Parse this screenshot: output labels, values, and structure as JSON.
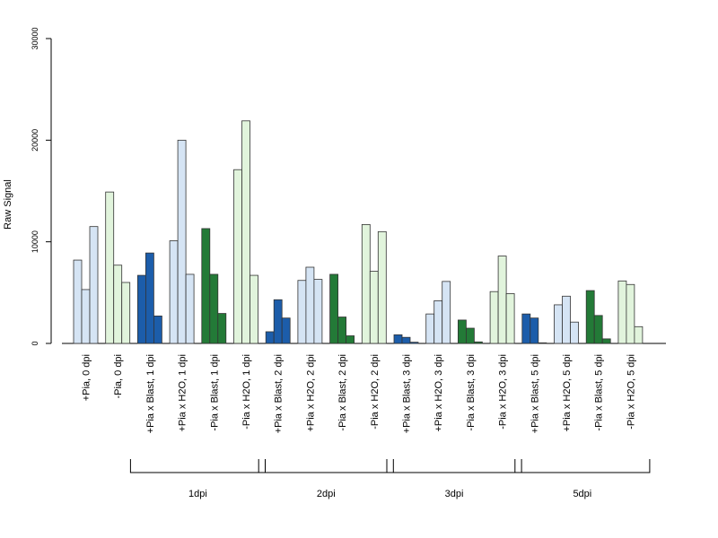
{
  "chart_data": {
    "type": "bar",
    "title": "",
    "ylabel": "Raw Signal",
    "xlabel": "",
    "ylim": [
      0,
      30000
    ],
    "yticks": [
      "0",
      "10000",
      "20000",
      "30000"
    ],
    "grid": false,
    "legend": "none",
    "categories": [
      "+Pia, 0 dpi",
      "-Pia, 0 dpi",
      "+Pia x Blast, 1 dpi",
      "+Pia x H2O, 1 dpi",
      "-Pia x Blast, 1 dpi",
      "-Pia x H2O, 1 dpi",
      "+Pia x Blast, 2 dpi",
      "+Pia x H2O, 2 dpi",
      "-Pia x Blast, 2 dpi",
      "-Pia x H2O, 2 dpi",
      "+Pia x Blast, 3 dpi",
      "+Pia x H2O, 3 dpi",
      "-Pia x Blast, 3 dpi",
      "-Pia x H2O, 3 dpi",
      "+Pia x Blast, 5 dpi",
      "+Pia x H2O, 5 dpi",
      "-Pia x Blast, 5 dpi",
      "-Pia x H2O, 5 dpi"
    ],
    "category_colors": [
      "#d5e4f4",
      "#e1f4dc",
      "#1c5daa",
      "#d5e4f4",
      "#237a37",
      "#e1f4dc",
      "#1c5daa",
      "#d5e4f4",
      "#237a37",
      "#e1f4dc",
      "#1c5daa",
      "#d5e4f4",
      "#237a37",
      "#e1f4dc",
      "#1c5daa",
      "#d5e4f4",
      "#237a37",
      "#e1f4dc"
    ],
    "values": [
      [
        8200,
        5300,
        11500
      ],
      [
        14900,
        7700,
        6000
      ],
      [
        6700,
        8900,
        2700
      ],
      [
        10100,
        20000,
        6800
      ],
      [
        11300,
        6800,
        2950
      ],
      [
        17100,
        21900,
        6700
      ],
      [
        1150,
        4300,
        2500
      ],
      [
        6200,
        7500,
        6300
      ],
      [
        6800,
        2600,
        750
      ],
      [
        11700,
        7100,
        11000
      ],
      [
        850,
        600,
        120
      ],
      [
        2900,
        4200,
        6100
      ],
      [
        2300,
        1500,
        150
      ],
      [
        5100,
        8600,
        4900
      ],
      [
        2900,
        2500,
        60
      ],
      [
        3800,
        4650,
        2100
      ],
      [
        5200,
        2750,
        450
      ],
      [
        6150,
        5800,
        1650
      ]
    ],
    "groups": [
      {
        "label": "1dpi",
        "first": 2,
        "last": 5
      },
      {
        "label": "2dpi",
        "first": 6,
        "last": 9
      },
      {
        "label": "3dpi",
        "first": 10,
        "last": 13
      },
      {
        "label": "5dpi",
        "first": 14,
        "last": 17
      }
    ],
    "bar_outline_color": "#333333"
  }
}
